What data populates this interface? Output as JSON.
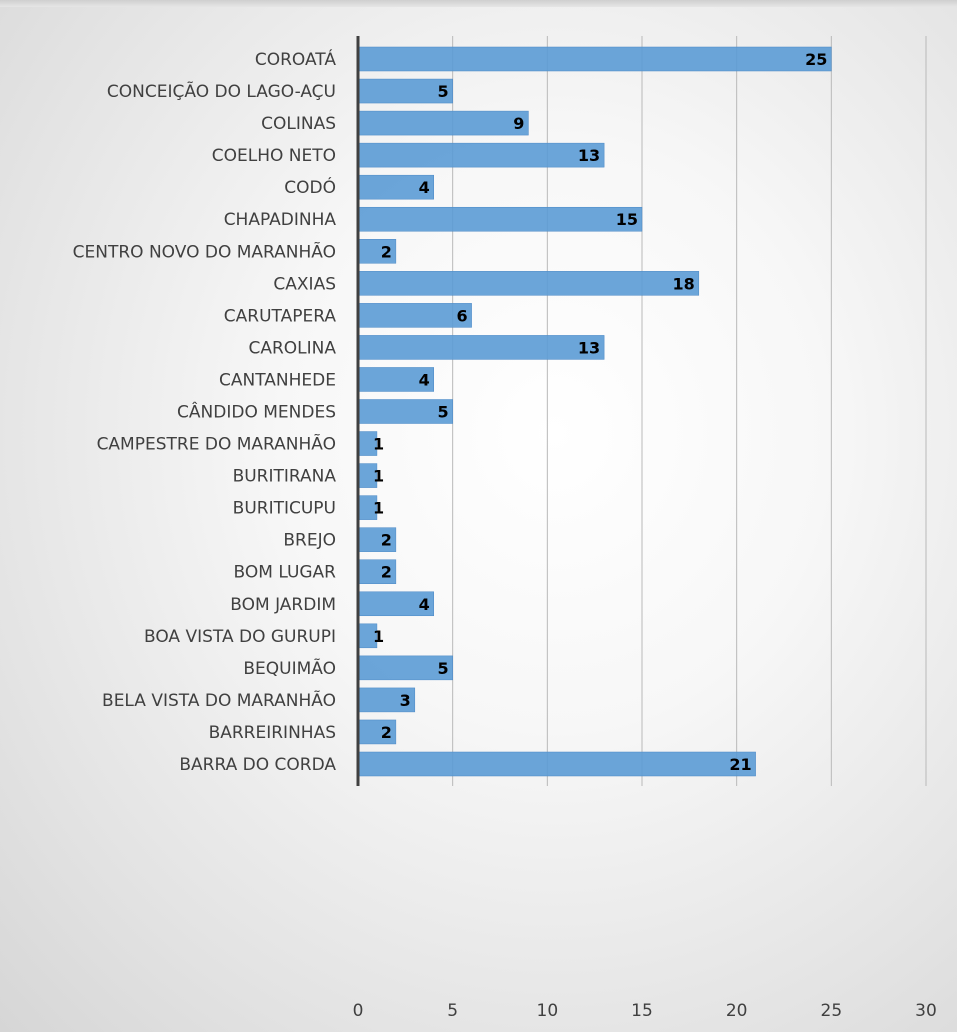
{
  "chart_data": {
    "type": "bar",
    "orientation": "horizontal",
    "categories": [
      "BARRA DO CORDA",
      "BARREIRINHAS",
      "BELA VISTA DO MARANHÃO",
      "BEQUIMÃO",
      "BOA VISTA DO GURUPI",
      "BOM JARDIM",
      "BOM LUGAR",
      "BREJO",
      "BURITICUPU",
      "BURITIRANA",
      "CAMPESTRE DO MARANHÃO",
      "CÂNDIDO MENDES",
      "CANTANHEDE",
      "CAROLINA",
      "CARUTAPERA",
      "CAXIAS",
      "CENTRO NOVO DO MARANHÃO",
      "CHAPADINHA",
      "CODÓ",
      "COELHO NETO",
      "COLINAS",
      "CONCEIÇÃO DO LAGO-AÇU",
      "COROATÁ"
    ],
    "values": [
      21,
      2,
      3,
      5,
      1,
      4,
      2,
      2,
      1,
      1,
      1,
      5,
      4,
      13,
      6,
      18,
      2,
      15,
      4,
      13,
      9,
      5,
      25
    ],
    "data_labels": [
      "21",
      "2",
      "3",
      "5",
      "1",
      "4",
      "2",
      "2",
      "1",
      "1",
      "1",
      "5",
      "4",
      "13",
      "6",
      "18",
      "2",
      "15",
      "4",
      "13",
      "9",
      "5",
      "25"
    ],
    "xlim": [
      0,
      30
    ],
    "xticks": [
      "0",
      "5",
      "10",
      "15",
      "20",
      "25",
      "30"
    ],
    "xtick_values": [
      0,
      5,
      10,
      15,
      20,
      25,
      30
    ],
    "title": "",
    "xlabel": "",
    "ylabel": "",
    "grid": "vertical",
    "legend": "none",
    "bar_color": "#5b9bd5",
    "axis_color": "#404040",
    "label_color": "#404040"
  }
}
